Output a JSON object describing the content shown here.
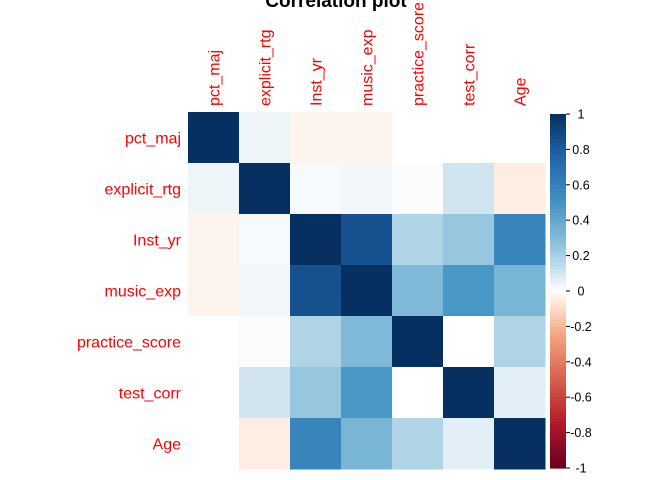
{
  "chart_data": {
    "type": "heatmap",
    "title": "Correlation plot",
    "variables": [
      "pct_maj",
      "explicit_rtg",
      "Inst_yr",
      "music_exp",
      "practice_score",
      "test_corr",
      "Age"
    ],
    "matrix": [
      [
        1.0,
        0.04,
        -0.03,
        -0.03,
        0.0,
        0.0,
        0.0
      ],
      [
        0.04,
        1.0,
        0.02,
        0.03,
        0.01,
        0.1,
        -0.05
      ],
      [
        -0.03,
        0.02,
        1.0,
        0.85,
        0.18,
        0.24,
        0.58
      ],
      [
        -0.03,
        0.03,
        0.85,
        1.0,
        0.31,
        0.48,
        0.33
      ],
      [
        0.0,
        0.01,
        0.18,
        0.31,
        1.0,
        0.0,
        0.18
      ],
      [
        0.0,
        0.1,
        0.24,
        0.48,
        0.0,
        1.0,
        0.06
      ],
      [
        0.0,
        -0.05,
        0.58,
        0.33,
        0.18,
        0.06,
        1.0
      ]
    ],
    "colorbar": {
      "range": [
        -1,
        1
      ],
      "ticks": [
        "1",
        "0.8",
        "0.6",
        "0.4",
        "0.2",
        "0",
        "-0.2",
        "-0.4",
        "-0.6",
        "-0.8",
        "-1"
      ],
      "tick_values": [
        1,
        0.8,
        0.6,
        0.4,
        0.2,
        0,
        -0.2,
        -0.4,
        -0.6,
        -0.8,
        -1
      ]
    },
    "label_color": "#ff0000",
    "grid": false,
    "legend_position": "right"
  }
}
